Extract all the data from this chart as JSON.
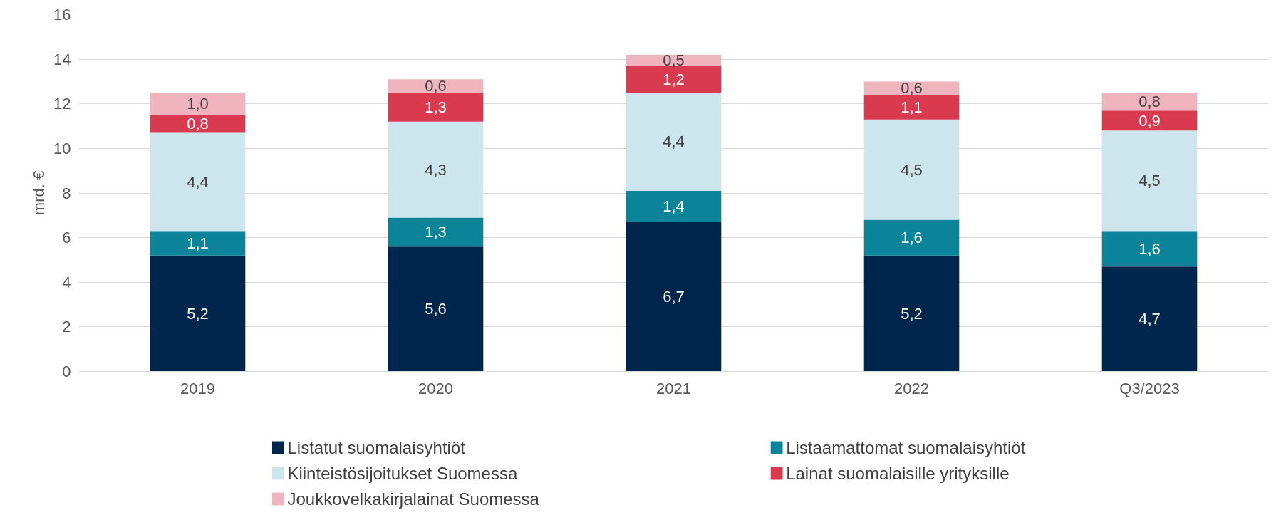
{
  "chart_data": {
    "type": "bar",
    "stacked": true,
    "ylabel": "mrd. €",
    "categories": [
      "2019",
      "2020",
      "2021",
      "2022",
      "Q3/2023"
    ],
    "ylim": [
      0,
      16
    ],
    "yticks": [
      0,
      2,
      4,
      6,
      8,
      10,
      12,
      14,
      16
    ],
    "grid": "y",
    "legend": "bottom",
    "series": [
      {
        "name": "Listatut suomalaisyhtiöt",
        "color": "#00264d",
        "values": [
          5.2,
          5.6,
          6.7,
          5.2,
          4.7
        ],
        "value_labels": [
          "5,2",
          "5,6",
          "6,7",
          "5,2",
          "4,7"
        ]
      },
      {
        "name": "Listaamattomat suomalaisyhtiöt",
        "color": "#0b8399",
        "values": [
          1.1,
          1.3,
          1.4,
          1.6,
          1.6
        ],
        "value_labels": [
          "1,1",
          "1,3",
          "1,4",
          "1,6",
          "1,6"
        ]
      },
      {
        "name": "Kiinteistösijoitukset Suomessa",
        "color": "#cde5ec",
        "values": [
          4.4,
          4.3,
          4.4,
          4.5,
          4.5
        ],
        "value_labels": [
          "4,4",
          "4,3",
          "4,4",
          "4,5",
          "4,5"
        ]
      },
      {
        "name": "Lainat suomalaisille yrityksille",
        "color": "#da3a50",
        "values": [
          0.8,
          1.3,
          1.2,
          1.1,
          0.9
        ],
        "value_labels": [
          "0,8",
          "1,3",
          "1,2",
          "1,1",
          "0,9"
        ]
      },
      {
        "name": "Joukkovelkakirjalainat Suomessa",
        "color": "#efb4bd",
        "values": [
          1.0,
          0.6,
          0.5,
          0.6,
          0.8
        ],
        "value_labels": [
          "1,0",
          "0,6",
          "0,5",
          "0,6",
          "0,8"
        ]
      }
    ]
  }
}
